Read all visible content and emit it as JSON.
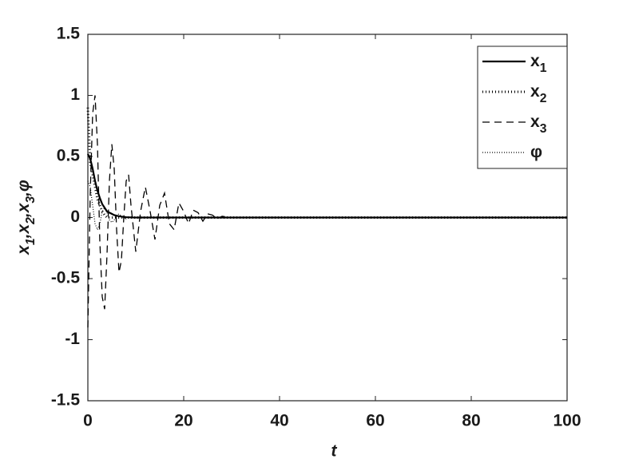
{
  "chart_data": {
    "type": "line",
    "xlabel": "t",
    "ylabel": "x1,x2,x3,φ",
    "x": [
      0,
      0.5,
      1,
      1.5,
      2,
      2.5,
      3,
      3.5,
      4,
      4.5,
      5,
      5.5,
      6,
      6.5,
      7,
      7.5,
      8,
      8.5,
      9,
      10,
      11,
      12,
      13,
      14,
      15,
      16,
      17,
      18,
      19,
      20,
      21,
      22,
      23,
      24,
      25,
      26,
      27,
      28,
      30,
      40,
      50,
      60,
      70,
      80,
      90,
      100
    ],
    "series": [
      {
        "name": "x1",
        "color": "#000000",
        "style": "solid",
        "values": [
          0.52,
          0.48,
          0.4,
          0.3,
          0.22,
          0.16,
          0.11,
          0.08,
          0.05,
          0.04,
          0.03,
          0.02,
          0.015,
          0.01,
          0.008,
          0.005,
          0.003,
          0.002,
          0.001,
          0,
          0,
          0,
          0,
          0,
          0,
          0,
          0,
          0,
          0,
          0,
          0,
          0,
          0,
          0,
          0,
          0,
          0,
          0,
          0,
          0,
          0,
          0,
          0,
          0,
          0,
          0
        ]
      },
      {
        "name": "x2",
        "color": "#000000",
        "style": "dotted-heavy",
        "values": [
          0.9,
          0.45,
          0.35,
          0.25,
          0.15,
          0.1,
          0.05,
          0.02,
          0,
          0,
          0,
          0,
          0,
          0,
          0,
          0,
          0,
          0,
          0,
          0,
          0,
          0,
          0,
          0,
          0,
          0,
          0,
          0,
          0,
          0,
          0,
          0,
          0,
          0,
          0,
          0,
          0,
          0,
          0,
          0,
          0,
          0,
          0,
          0,
          0,
          0
        ]
      },
      {
        "name": "x3",
        "color": "#000000",
        "style": "dashed",
        "values": [
          -0.9,
          0.2,
          0.85,
          1.0,
          0.6,
          -0.2,
          -0.65,
          -0.75,
          -0.3,
          0.3,
          0.6,
          0.4,
          -0.1,
          -0.45,
          -0.35,
          0,
          0.3,
          0.35,
          0.1,
          -0.28,
          0.05,
          0.25,
          0.05,
          -0.18,
          0.1,
          0.2,
          -0.05,
          -0.1,
          0.12,
          0.05,
          -0.05,
          0.06,
          0.04,
          -0.03,
          0.03,
          0.02,
          -0.01,
          0.01,
          0,
          0,
          0,
          0,
          0,
          0,
          0,
          0
        ]
      },
      {
        "name": "φ",
        "color": "#000000",
        "style": "dotted",
        "values": [
          0.3,
          0.25,
          0.1,
          -0.05,
          -0.1,
          -0.05,
          0.05,
          0.08,
          0.04,
          -0.02,
          -0.04,
          -0.02,
          0.02,
          0.03,
          0.01,
          -0.01,
          -0.01,
          0,
          0,
          0,
          0,
          0,
          0,
          0,
          0,
          0,
          0,
          0,
          0,
          0,
          0,
          0,
          0,
          0,
          0,
          0,
          0,
          0,
          0,
          0,
          0,
          0,
          0,
          0,
          0,
          0
        ]
      }
    ],
    "xlim": [
      0,
      100
    ],
    "xticks": [
      0,
      20,
      40,
      60,
      80,
      100
    ],
    "ylim": [
      -1.5,
      1.5
    ],
    "yticks": [
      -1.5,
      -1,
      -0.5,
      0,
      0.5,
      1,
      1.5
    ],
    "grid": false,
    "legend": "top-right"
  }
}
